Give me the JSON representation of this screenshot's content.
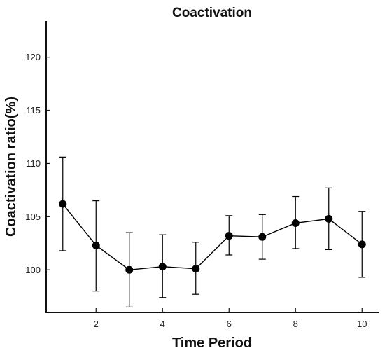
{
  "chart_data": {
    "type": "line",
    "title": "Coactivation",
    "xlabel": "Time Period",
    "ylabel": "Coactivation ratio(%)",
    "xlim": [
      0.5,
      10.5
    ],
    "ylim": [
      96,
      123.4
    ],
    "xticks": [
      2,
      4,
      6,
      8,
      10
    ],
    "yticks": [
      100,
      105,
      110,
      115,
      120
    ],
    "grid": false,
    "series": [
      {
        "x": [
          1,
          2,
          3,
          4,
          5,
          6,
          7,
          8,
          9,
          10
        ],
        "y": [
          106.2,
          102.3,
          100.0,
          100.3,
          100.1,
          103.2,
          103.1,
          104.4,
          104.8,
          102.4
        ],
        "err_low": [
          101.8,
          98.0,
          96.5,
          97.4,
          97.7,
          101.4,
          101.0,
          102.0,
          101.9,
          99.3
        ],
        "err_high": [
          110.6,
          106.5,
          103.5,
          103.3,
          102.6,
          105.1,
          105.2,
          106.9,
          107.7,
          105.5
        ],
        "color": "#000000"
      }
    ]
  }
}
